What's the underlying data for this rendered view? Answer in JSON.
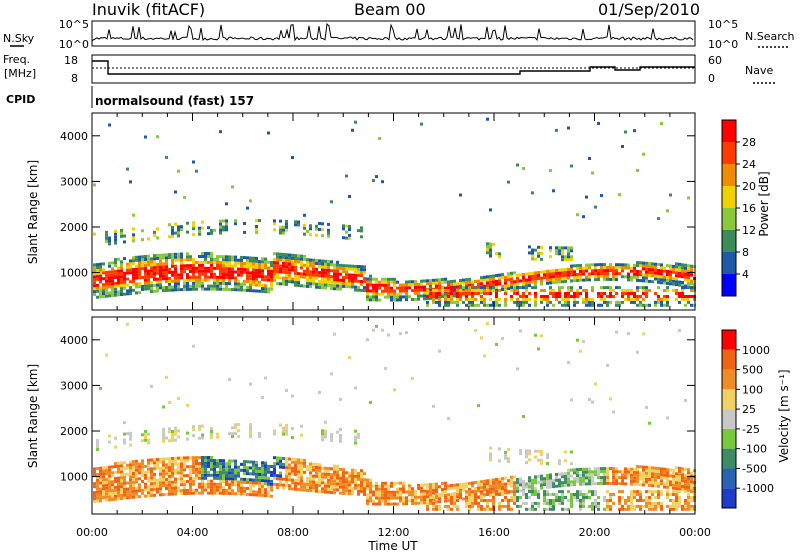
{
  "header": {
    "station": "Inuvik (fitACF)",
    "beam": "Beam 00",
    "date": "01/Sep/2010"
  },
  "sky_panel": {
    "left_label": "N.Sky",
    "right_label": "N.Search",
    "left_ticks": [
      "10^5",
      "10^0"
    ],
    "right_ticks": [
      "10^5",
      "10^0"
    ]
  },
  "freq_panel": {
    "left_label_1": "Freq.",
    "left_label_2": "[MHz]",
    "right_label": "Nave",
    "left_ticks": [
      "18",
      "8"
    ],
    "right_ticks": [
      "60",
      "0"
    ]
  },
  "cpid": {
    "label": "CPID",
    "value": "normalsound (fast) 157"
  },
  "chart_data": [
    {
      "type": "heatmap",
      "quantity": "Power",
      "ylabel": "Slant Range [km]",
      "xlabel": "",
      "xlim": [
        "00:00",
        "00:00"
      ],
      "ylim": [
        180,
        4500
      ],
      "y_ticks": [
        "1000",
        "2000",
        "3000",
        "4000"
      ],
      "colorbar_label": "Power [dB]",
      "colorbar_ticks": [
        "4",
        "8",
        "12",
        "16",
        "20",
        "24",
        "28"
      ],
      "colors": [
        "#0000ff",
        "#1e5aa8",
        "#3c8c5a",
        "#8cc83c",
        "#f0d200",
        "#f08c00",
        "#ff3c00",
        "#ff0000"
      ]
    },
    {
      "type": "heatmap",
      "quantity": "Velocity",
      "ylabel": "Slant Range [km]",
      "xlabel": "Time UT",
      "ylim": [
        180,
        4500
      ],
      "y_ticks": [
        "1000",
        "2000",
        "3000",
        "4000"
      ],
      "x_ticks": [
        "00:00",
        "04:00",
        "08:00",
        "12:00",
        "16:00",
        "20:00",
        "00:00"
      ],
      "colorbar_label": "Velocity [m s⁻¹]",
      "colorbar_ticks": [
        "1000",
        "500",
        "100",
        "25",
        "-25",
        "-100",
        "-500",
        "-1000"
      ],
      "colors": [
        "#1e3cc8",
        "#2864b4",
        "#3c8c64",
        "#78c83c",
        "#c8c8c8",
        "#f0d264",
        "#f08c28",
        "#f06414",
        "#ff0000"
      ]
    }
  ]
}
